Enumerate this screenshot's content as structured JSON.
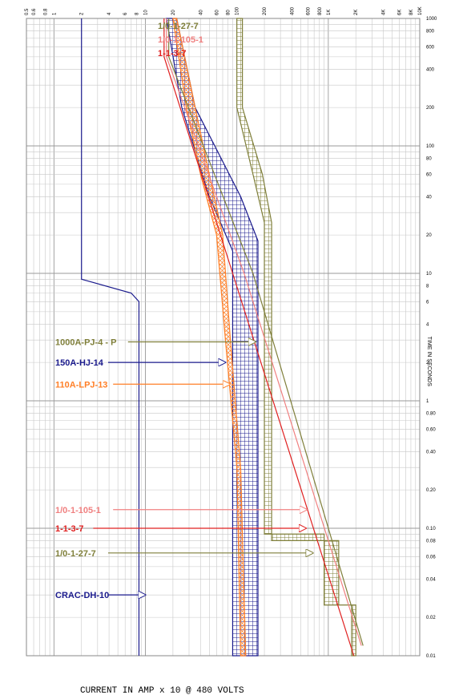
{
  "chart_data": {
    "type": "line",
    "log_x": true,
    "log_y": true,
    "xlim": [
      0.5,
      10000
    ],
    "ylim": [
      0.01,
      1000
    ],
    "x_tick_labels": [
      "0.5",
      "0.6",
      "0.8",
      "1",
      "2",
      "4",
      "6",
      "8",
      "10",
      "20",
      "40",
      "60",
      "80",
      "100",
      "200",
      "400",
      "600",
      "800",
      "1K",
      "2K",
      "4K",
      "6K",
      "8K",
      "10K"
    ],
    "x_tick_values": [
      0.5,
      0.6,
      0.8,
      1,
      2,
      4,
      6,
      8,
      10,
      20,
      40,
      60,
      80,
      100,
      200,
      400,
      600,
      800,
      1000,
      2000,
      4000,
      6000,
      8000,
      10000
    ],
    "y_tick_labels": [
      "1000",
      "800",
      "600",
      "400",
      "200",
      "100",
      "80",
      "60",
      "40",
      "20",
      "10",
      "8",
      "6",
      "4",
      "2",
      "1",
      "0.80",
      "0.60",
      "0.40",
      "0.20",
      "0.10",
      "0.08",
      "0.06",
      "0.04",
      "0.02",
      "0.01"
    ],
    "y_tick_values": [
      1000,
      800,
      600,
      400,
      200,
      100,
      80,
      60,
      40,
      20,
      10,
      8,
      6,
      4,
      2,
      1,
      0.8,
      0.6,
      0.4,
      0.2,
      0.1,
      0.08,
      0.06,
      0.04,
      0.02,
      0.01
    ],
    "ylabel": "TIME IN SECONDS",
    "xlabel": "CURRENT IN AMP  x 10 @  480 VOLTS",
    "grid": true,
    "series": [
      {
        "name": "1000A-PJ-4 - P",
        "color": "#7f7f3a",
        "kind": "band",
        "left": [
          [
            100,
            1000
          ],
          [
            100,
            200
          ],
          [
            150,
            60
          ],
          [
            200,
            25
          ],
          [
            200,
            0.09
          ],
          [
            900,
            0.09
          ],
          [
            900,
            0.025
          ],
          [
            1800,
            0.025
          ],
          [
            1800,
            0.01
          ]
        ],
        "right": [
          [
            115,
            1000
          ],
          [
            115,
            200
          ],
          [
            190,
            60
          ],
          [
            240,
            25
          ],
          [
            240,
            0.08
          ],
          [
            1300,
            0.08
          ],
          [
            1300,
            0.025
          ],
          [
            2000,
            0.025
          ],
          [
            2000,
            0.01
          ]
        ],
        "marker": {
          "x": 160,
          "y": 2.9
        }
      },
      {
        "name": "150A-HJ-14",
        "color": "#1a1a8c",
        "kind": "band",
        "left": [
          [
            17,
            1000
          ],
          [
            25,
            200
          ],
          [
            50,
            40
          ],
          [
            90,
            15
          ],
          [
            90,
            0.01
          ]
        ],
        "right": [
          [
            22,
            1000
          ],
          [
            35,
            200
          ],
          [
            110,
            40
          ],
          [
            170,
            18
          ],
          [
            170,
            0.01
          ]
        ],
        "marker": {
          "x": 75,
          "y": 2
        }
      },
      {
        "name": "110A-LPJ-13",
        "color": "#ff7f27",
        "kind": "band",
        "left": [
          [
            20,
            1000
          ],
          [
            28,
            200
          ],
          [
            40,
            60
          ],
          [
            60,
            20
          ],
          [
            75,
            3
          ],
          [
            100,
            0.3
          ],
          [
            110,
            0.01
          ]
        ],
        "right": [
          [
            22,
            1000
          ],
          [
            35,
            200
          ],
          [
            50,
            60
          ],
          [
            70,
            20
          ],
          [
            85,
            3
          ],
          [
            110,
            0.3
          ],
          [
            125,
            0.01
          ]
        ],
        "marker": {
          "x": 84,
          "y": 1.35
        }
      },
      {
        "name": "1/0-1-105-1",
        "color": "#f08080",
        "kind": "line",
        "points": [
          [
            17,
            1000
          ],
          [
            17,
            500
          ],
          [
            120,
            10
          ],
          [
            2300,
            0.012
          ]
        ],
        "marker": {
          "x": 580,
          "y": 0.14
        }
      },
      {
        "name": "1-1-3-7",
        "color": "#e02020",
        "kind": "line",
        "points": [
          [
            16,
            1000
          ],
          [
            16,
            500
          ],
          [
            90,
            10
          ],
          [
            1900,
            0.01
          ]
        ],
        "marker": {
          "x": 570,
          "y": 0.1
        }
      },
      {
        "name": "1/0-1-27-7",
        "color": "#7f7f3a",
        "kind": "line",
        "points": [
          [
            18,
            1000
          ],
          [
            18,
            500
          ],
          [
            150,
            10
          ],
          [
            2400,
            0.012
          ]
        ],
        "marker": {
          "x": 680,
          "y": 0.064
        }
      },
      {
        "name": "CRAC-DH-10",
        "color": "#1a1a8c",
        "kind": "line",
        "points": [
          [
            2,
            1000
          ],
          [
            2,
            9
          ],
          [
            7,
            7
          ],
          [
            8.5,
            6
          ],
          [
            8.5,
            0.01
          ]
        ],
        "marker": {
          "x": 10,
          "y": 0.03
        }
      }
    ],
    "top_labels": [
      {
        "text": "1/0-1-27-7",
        "color": "#7f7f3a"
      },
      {
        "text": "1/0-1-105-1",
        "color": "#f08080"
      },
      {
        "text": "1-1-3-7",
        "color": "#e02020"
      }
    ]
  }
}
